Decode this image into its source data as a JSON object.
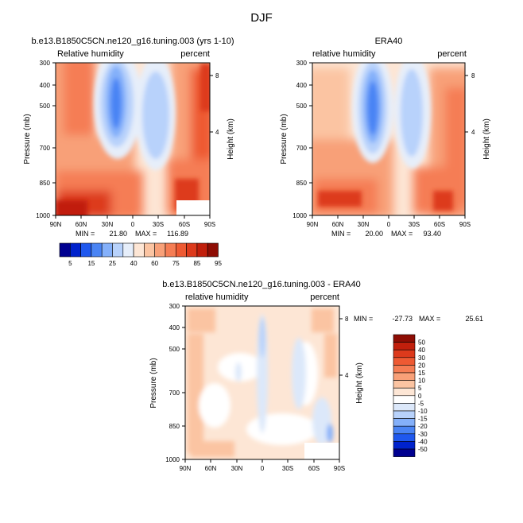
{
  "figure": {
    "title": "DJF"
  },
  "chart_data": [
    {
      "type": "heatmap",
      "title": "b.e13.B1850C5CN.ne120_g16.tuning.003 (yrs 1-10)",
      "left_label": "Relative humidity",
      "right_label": "percent",
      "xlabel": "",
      "ylabel": "Pressure (mb)",
      "y2label": "Height (km)",
      "x_ticks": [
        "90N",
        "60N",
        "30N",
        "0",
        "30S",
        "60S",
        "90S"
      ],
      "y_ticks": [
        "300",
        "400",
        "500",
        "700",
        "850",
        "1000"
      ],
      "y2_ticks": [
        "8",
        "4"
      ],
      "ylim": [
        1000,
        300
      ],
      "xlim": [
        90,
        -90
      ],
      "min_label": "MIN =",
      "min_value": "21.80",
      "max_label": "MAX =",
      "max_value": "116.89",
      "colorbar": {
        "orientation": "horizontal",
        "labels": [
          "5",
          "15",
          "25",
          "40",
          "60",
          "75",
          "85",
          "95"
        ],
        "colors": [
          "#000090",
          "#0022cc",
          "#1f58ee",
          "#4a84f4",
          "#84b0fa",
          "#b8d2fb",
          "#e6eefa",
          "#fde6d5",
          "#fbc4a2",
          "#f8a078",
          "#f57d54",
          "#ee5a33",
          "#dd3a1c",
          "#c11f0c",
          "#8e0d04"
        ]
      }
    },
    {
      "type": "heatmap",
      "title": "ERA40",
      "left_label": "relative humidity",
      "right_label": "percent",
      "xlabel": "",
      "ylabel": "Pressure (mb)",
      "y2label": "Height (km)",
      "x_ticks": [
        "90N",
        "60N",
        "30N",
        "0",
        "30S",
        "60S",
        "90S"
      ],
      "y_ticks": [
        "300",
        "400",
        "500",
        "700",
        "850",
        "1000"
      ],
      "y2_ticks": [
        "8",
        "4"
      ],
      "ylim": [
        1000,
        300
      ],
      "xlim": [
        90,
        -90
      ],
      "min_label": "MIN =",
      "min_value": "20.00",
      "max_label": "MAX =",
      "max_value": "93.40"
    },
    {
      "type": "heatmap",
      "title": "b.e13.B1850C5CN.ne120_g16.tuning.003 - ERA40",
      "left_label": "relative humidity",
      "right_label": "percent",
      "xlabel": "",
      "ylabel": "Pressure (mb)",
      "y2label": "Height (km)",
      "x_ticks": [
        "90N",
        "60N",
        "30N",
        "0",
        "30S",
        "60S",
        "90S"
      ],
      "y_ticks": [
        "300",
        "400",
        "500",
        "700",
        "850",
        "1000"
      ],
      "y2_ticks": [
        "8",
        "4"
      ],
      "ylim": [
        1000,
        300
      ],
      "xlim": [
        90,
        -90
      ],
      "min_label": "MIN =",
      "min_value": "-27.73",
      "max_label": "MAX =",
      "max_value": "25.61",
      "colorbar": {
        "orientation": "vertical",
        "labels": [
          "50",
          "40",
          "30",
          "20",
          "15",
          "10",
          "5",
          "0",
          "-5",
          "-10",
          "-15",
          "-20",
          "-30",
          "-40",
          "-50"
        ],
        "colors": [
          "#8e0d04",
          "#c11f0c",
          "#dd3a1c",
          "#ee5a33",
          "#f57d54",
          "#f8a078",
          "#fbc4a2",
          "#fde6d5",
          "#ffffff",
          "#dce8fa",
          "#b8d2fb",
          "#84b0fa",
          "#4a84f4",
          "#1f58ee",
          "#0022cc",
          "#000090"
        ]
      }
    }
  ]
}
